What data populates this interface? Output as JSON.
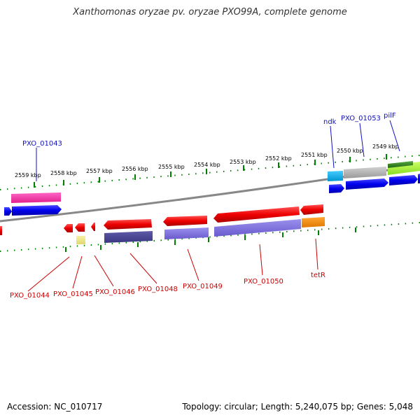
{
  "title": "Xanthomonas oryzae pv. oryzae PXO99A, complete genome",
  "footer": {
    "accession": "Accession: NC_010717",
    "summary": "Topology: circular; Length: 5,240,075 bp; Genes: 5,048"
  },
  "scale_labels": [
    "2559 kbp",
    "2558 kbp",
    "2557 kbp",
    "2556 kbp",
    "2555 kbp",
    "2554 kbp",
    "2553 kbp",
    "2552 kbp",
    "2551 kbp",
    "2550 kbp",
    "2549 kbp"
  ],
  "gene_labels_top": [
    "PXO_01043",
    "ndk",
    "PXO_01053",
    "pilF"
  ],
  "gene_labels_bottom": [
    "PXO_01044",
    "PXO_01045",
    "PXO_01046",
    "PXO_01048",
    "PXO_01049",
    "PXO_01050",
    "tetR"
  ],
  "colors": {
    "forward_label": "#1010c0",
    "reverse_label": "#cc0000",
    "tick": "#008000",
    "backbone": "#888888"
  }
}
